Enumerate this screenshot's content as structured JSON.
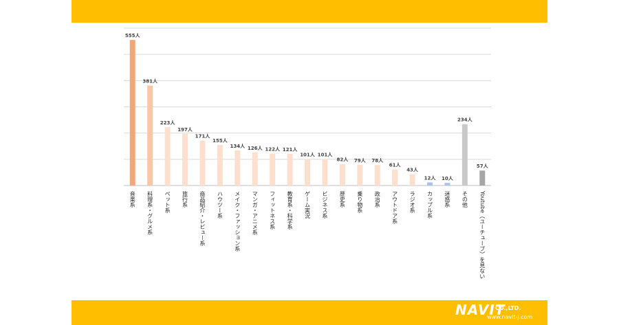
{
  "chart_data": {
    "type": "bar",
    "categories": [
      "音楽系",
      "料理系・グルメ系",
      "ペット系",
      "旅行系",
      "商品紹介・レビュー系",
      "ハウツー系",
      "メイク・ファッション系",
      "マンガ・アニメ系",
      "フィットネス系",
      "教育系・科学系",
      "ゲーム実況",
      "ビジネス系",
      "歴史系",
      "乗り物系",
      "政治系",
      "アウトドア系",
      "ラジオ系",
      "カップル系",
      "迷惑系",
      "その他",
      "Youtube（ユーチューブ）を見ない"
    ],
    "values": [
      555,
      381,
      223,
      197,
      171,
      155,
      134,
      126,
      122,
      121,
      101,
      101,
      82,
      79,
      78,
      61,
      43,
      12,
      10,
      234,
      57
    ],
    "data_labels": [
      "555人",
      "381人",
      "223人",
      "197人",
      "171人",
      "155人",
      "134人",
      "126人",
      "122人",
      "121人",
      "101人",
      "101人",
      "82人",
      "79人",
      "78人",
      "61人",
      "43人",
      "12人",
      "10人",
      "234人",
      "57人"
    ],
    "colors": [
      "#f0a87a",
      "#f7c7a6",
      "#fce0cd",
      "#fce0cd",
      "#fce0cd",
      "#fce0cd",
      "#fce0cd",
      "#fce0cd",
      "#fce0cd",
      "#fce0cd",
      "#fce0cd",
      "#fce0cd",
      "#fce0cd",
      "#fce0cd",
      "#fce0cd",
      "#fce0cd",
      "#fce0cd",
      "#a9c4ea",
      "#a9c4ea",
      "#c9c9c9",
      "#a6a6a6"
    ],
    "ylim": [
      0,
      600
    ],
    "grid": true,
    "title": "",
    "xlabel": "",
    "ylabel": ""
  },
  "footer": {
    "logo_main": "NAVIT",
    "logo_company": "CO.,LTD.",
    "logo_url": "www.navit-j.com"
  }
}
